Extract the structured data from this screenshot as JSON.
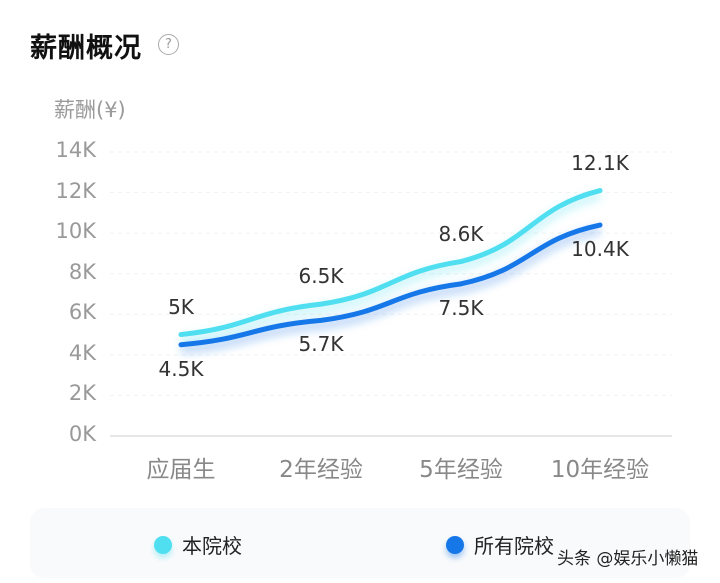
{
  "header": {
    "title": "薪酬概况",
    "help_icon": "?"
  },
  "chart_data": {
    "type": "line",
    "title": "薪酬概况",
    "ylabel": "薪酬(¥)",
    "xlabel": "",
    "categories": [
      "应届生",
      "2年经验",
      "5年经验",
      "10年经验"
    ],
    "y_ticks": [
      "0K",
      "2K",
      "4K",
      "6K",
      "8K",
      "10K",
      "12K",
      "14K"
    ],
    "ylim": [
      0,
      14000
    ],
    "grid": true,
    "legend_position": "bottom",
    "series": [
      {
        "name": "本院校",
        "color": "#4fdff0",
        "values": [
          5000,
          6500,
          8600,
          12100
        ],
        "labels": [
          "5K",
          "6.5K",
          "8.6K",
          "12.1K"
        ]
      },
      {
        "name": "所有院校",
        "color": "#1677e8",
        "values": [
          4500,
          5700,
          7500,
          10400
        ],
        "labels": [
          "4.5K",
          "5.7K",
          "7.5K",
          "10.4K"
        ]
      }
    ]
  },
  "legend": {
    "items": [
      {
        "label": "本院校",
        "color": "#4fdff0"
      },
      {
        "label": "所有院校",
        "color": "#1677e8"
      }
    ]
  },
  "watermark": "头条 @娱乐小懒猫"
}
